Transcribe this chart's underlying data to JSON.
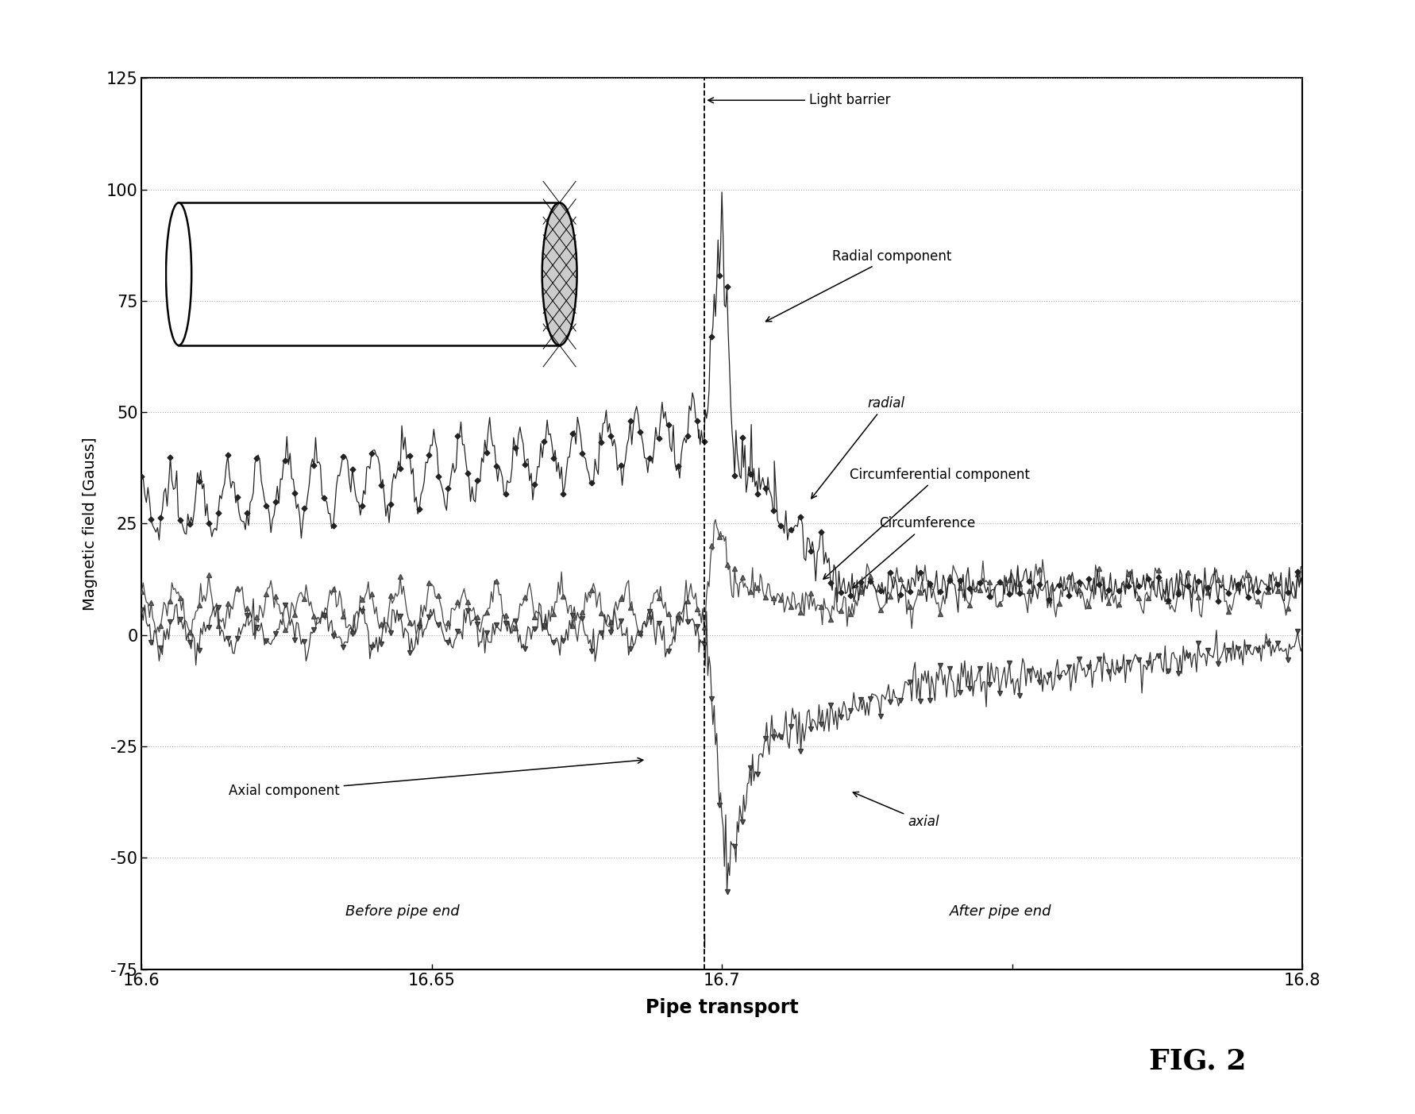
{
  "xlim": [
    16.6,
    16.8
  ],
  "ylim": [
    -75,
    125
  ],
  "yticks": [
    -75,
    -50,
    -25,
    0,
    25,
    50,
    75,
    100,
    125
  ],
  "xticks": [
    16.6,
    16.65,
    16.7,
    16.75,
    16.8
  ],
  "xtick_labels": [
    "16.6",
    "16.65",
    "16.7",
    "",
    "16.8"
  ],
  "xlabel": "Pipe transport",
  "ylabel": "Magnetic field [Gauss]",
  "vline_x": 16.697,
  "light_barrier_label": "Light barrier",
  "radial_component_label": "Radial component",
  "radial_label": "radial",
  "circumferential_component_label": "Circumferential component",
  "circumference_label": "Circumference",
  "axial_component_label": "Axial component",
  "axial_label": "axial",
  "before_pipe_end_label": "Before pipe end",
  "after_pipe_end_label": "After pipe end",
  "fig2_label": "FIG. 2",
  "bg_color": "#ffffff",
  "grid_color": "#999999"
}
